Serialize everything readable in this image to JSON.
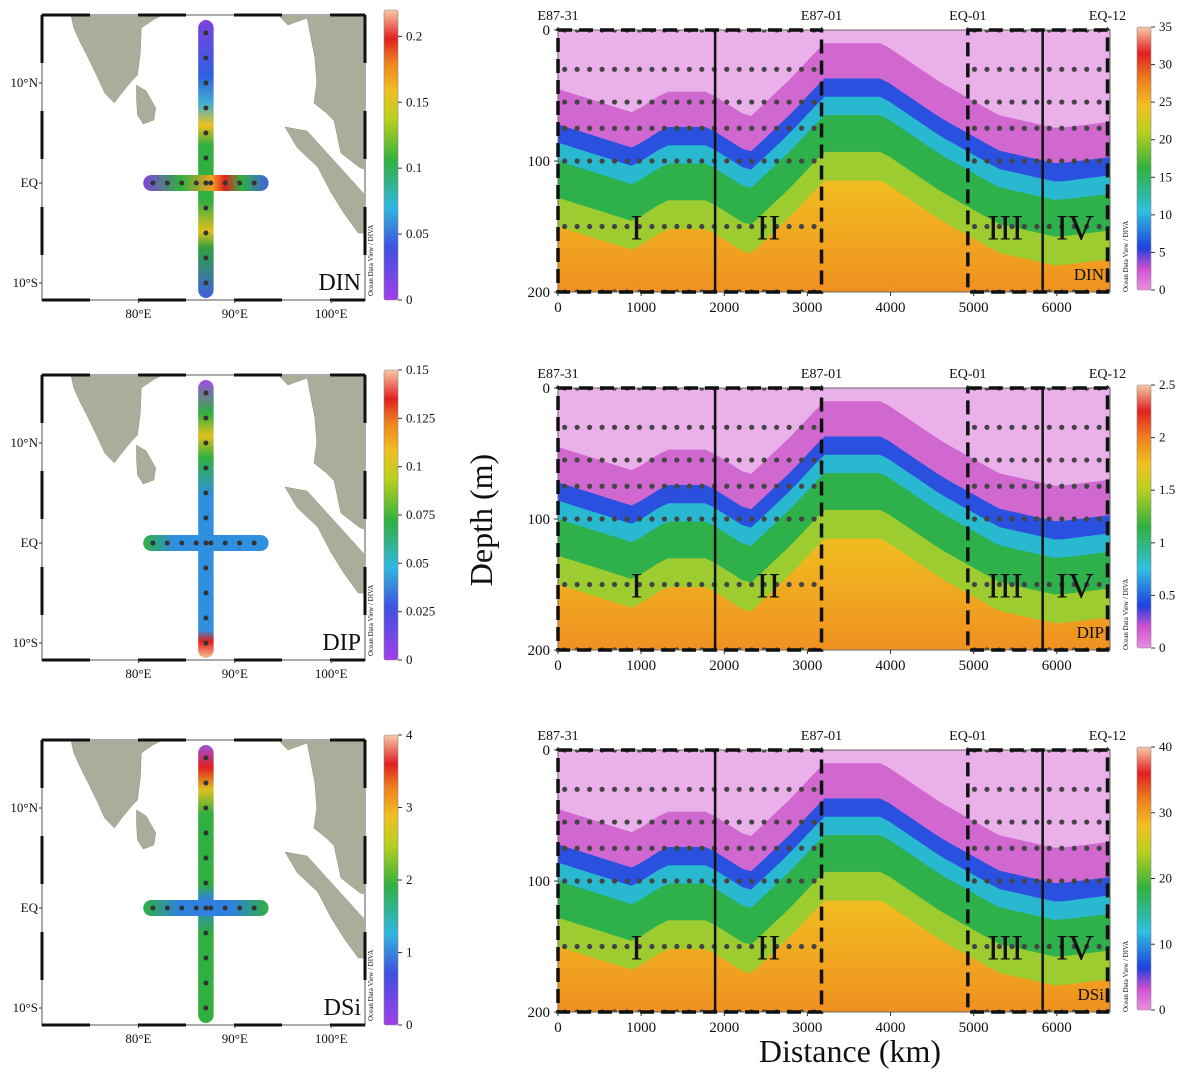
{
  "figure": {
    "ylabel": "Depth (m)",
    "xlabel": "Distance (km)"
  },
  "chart_data": [
    {
      "type": "map",
      "label": "DIN",
      "xlim": [
        70,
        103.5
      ],
      "ylim": [
        -11.7,
        16.8
      ],
      "xticks": [
        {
          "value": 80,
          "label": "80°E"
        },
        {
          "value": 90,
          "label": "90°E"
        },
        {
          "value": 100,
          "label": "100°E"
        }
      ],
      "yticks": [
        {
          "value": 10,
          "label": "10°N"
        },
        {
          "value": 0,
          "label": "EQ"
        },
        {
          "value": -10,
          "label": "10°S"
        }
      ],
      "colorbar": {
        "lim": [
          0,
          0.22
        ],
        "ticks": [
          0,
          0.05,
          0.1,
          0.15,
          0.2
        ]
      },
      "watermark": "Ocean Data View / DIVA"
    },
    {
      "type": "section",
      "label": "DIN",
      "xlim": [
        0,
        6640
      ],
      "ylim": [
        200,
        0
      ],
      "xticks": [
        0,
        1000,
        2000,
        3000,
        4000,
        5000,
        6000
      ],
      "yticks": [
        0,
        100,
        200
      ],
      "stations": [
        {
          "name": "E87-31",
          "x": 0
        },
        {
          "name": "E87-01",
          "x": 3170
        },
        {
          "name": "EQ-01",
          "x": 4930
        },
        {
          "name": "EQ-12",
          "x": 6610
        }
      ],
      "boxes": [
        [
          0,
          3170
        ],
        [
          4930,
          6610
        ]
      ],
      "dividers": [
        1890,
        5830
      ],
      "regions": [
        "I",
        "II",
        "III",
        "IV"
      ],
      "colorbar": {
        "lim": [
          0,
          35
        ],
        "ticks": [
          0,
          5,
          10,
          15,
          20,
          25,
          30,
          35
        ]
      },
      "watermark": "Ocean Data View / DIVA"
    },
    {
      "type": "map",
      "label": "DIP",
      "xlim": [
        70,
        103.5
      ],
      "ylim": [
        -11.7,
        16.8
      ],
      "xticks": [
        {
          "value": 80,
          "label": "80°E"
        },
        {
          "value": 90,
          "label": "90°E"
        },
        {
          "value": 100,
          "label": "100°E"
        }
      ],
      "yticks": [
        {
          "value": 10,
          "label": "10°N"
        },
        {
          "value": 0,
          "label": "EQ"
        },
        {
          "value": -10,
          "label": "10°S"
        }
      ],
      "colorbar": {
        "lim": [
          0,
          0.15
        ],
        "ticks": [
          0,
          0.025,
          0.05,
          0.075,
          0.1,
          0.125,
          0.15
        ]
      },
      "watermark": "Ocean Data View / DIVA"
    },
    {
      "type": "section",
      "label": "DIP",
      "xlim": [
        0,
        6640
      ],
      "ylim": [
        200,
        0
      ],
      "xticks": [
        0,
        1000,
        2000,
        3000,
        4000,
        5000,
        6000
      ],
      "yticks": [
        0,
        100,
        200
      ],
      "stations": [
        {
          "name": "E87-31",
          "x": 0
        },
        {
          "name": "E87-01",
          "x": 3170
        },
        {
          "name": "EQ-01",
          "x": 4930
        },
        {
          "name": "EQ-12",
          "x": 6610
        }
      ],
      "boxes": [
        [
          0,
          3170
        ],
        [
          4930,
          6610
        ]
      ],
      "dividers": [
        1890,
        5830
      ],
      "regions": [
        "I",
        "II",
        "III",
        "IV"
      ],
      "colorbar": {
        "lim": [
          0,
          2.5
        ],
        "ticks": [
          0,
          0.5,
          1,
          1.5,
          2,
          2.5
        ]
      },
      "watermark": "Ocean Data View / DIVA"
    },
    {
      "type": "map",
      "label": "DSi",
      "xlim": [
        70,
        103.5
      ],
      "ylim": [
        -11.7,
        16.8
      ],
      "xticks": [
        {
          "value": 80,
          "label": "80°E"
        },
        {
          "value": 90,
          "label": "90°E"
        },
        {
          "value": 100,
          "label": "100°E"
        }
      ],
      "yticks": [
        {
          "value": 10,
          "label": "10°N"
        },
        {
          "value": 0,
          "label": "EQ"
        },
        {
          "value": -10,
          "label": "10°S"
        }
      ],
      "colorbar": {
        "lim": [
          0,
          4
        ],
        "ticks": [
          0,
          1,
          2,
          3,
          4
        ]
      },
      "watermark": "Ocean Data View / DIVA"
    },
    {
      "type": "section",
      "label": "DSi",
      "xlim": [
        0,
        6640
      ],
      "ylim": [
        200,
        0
      ],
      "xticks": [
        0,
        1000,
        2000,
        3000,
        4000,
        5000,
        6000
      ],
      "yticks": [
        0,
        100,
        200
      ],
      "stations": [
        {
          "name": "E87-31",
          "x": 0
        },
        {
          "name": "E87-01",
          "x": 3170
        },
        {
          "name": "EQ-01",
          "x": 4930
        },
        {
          "name": "EQ-12",
          "x": 6610
        }
      ],
      "boxes": [
        [
          0,
          3170
        ],
        [
          4930,
          6610
        ]
      ],
      "dividers": [
        1890,
        5830
      ],
      "regions": [
        "I",
        "II",
        "III",
        "IV"
      ],
      "colorbar": {
        "lim": [
          0,
          40
        ],
        "ticks": [
          0,
          10,
          20,
          30,
          40
        ]
      },
      "watermark": "Ocean Data View / DIVA"
    }
  ]
}
